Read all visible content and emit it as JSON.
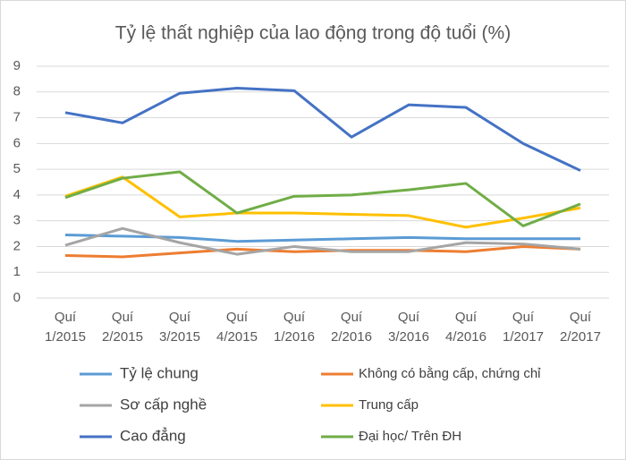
{
  "chart_data": {
    "type": "line",
    "title": "Tỷ lệ thất nghiệp của lao động trong độ tuổi (%)",
    "categories": [
      "Quí 1/2015",
      "Quí 2/2015",
      "Quí 3/2015",
      "Quí 4/2015",
      "Quí 1/2016",
      "Quí 2/2016",
      "Quí 3/2016",
      "Quí 4/2016",
      "Quí 1/2017",
      "Quí 2/2017"
    ],
    "series": [
      {
        "name": "Tỷ lệ chung",
        "color": "#5b9bd5",
        "values": [
          2.45,
          2.4,
          2.35,
          2.2,
          2.25,
          2.3,
          2.35,
          2.3,
          2.3,
          2.3
        ]
      },
      {
        "name": "Không có bằng cấp, chứng chỉ",
        "color": "#ed7d31",
        "values": [
          1.65,
          1.6,
          1.75,
          1.9,
          1.8,
          1.85,
          1.85,
          1.8,
          2.0,
          1.9
        ]
      },
      {
        "name": "Sơ cấp nghề",
        "color": "#a5a5a5",
        "values": [
          2.05,
          2.7,
          2.15,
          1.7,
          2.0,
          1.8,
          1.8,
          2.15,
          2.1,
          1.9
        ]
      },
      {
        "name": "Trung cấp",
        "color": "#ffc000",
        "values": [
          3.95,
          4.7,
          3.15,
          3.3,
          3.3,
          3.25,
          3.2,
          2.75,
          3.1,
          3.5
        ]
      },
      {
        "name": "Cao đẳng",
        "color": "#4472c4",
        "values": [
          7.2,
          6.8,
          7.95,
          8.15,
          8.05,
          6.25,
          7.5,
          7.4,
          6.0,
          4.95
        ]
      },
      {
        "name": "Đại học/ Trên ĐH",
        "color": "#70ad47",
        "values": [
          3.9,
          4.65,
          4.9,
          3.3,
          3.95,
          4.0,
          4.2,
          4.45,
          2.8,
          3.65
        ]
      }
    ],
    "ylim": [
      0,
      9
    ],
    "yticks": [
      0,
      1,
      2,
      3,
      4,
      5,
      6,
      7,
      8,
      9
    ],
    "grid": true
  }
}
